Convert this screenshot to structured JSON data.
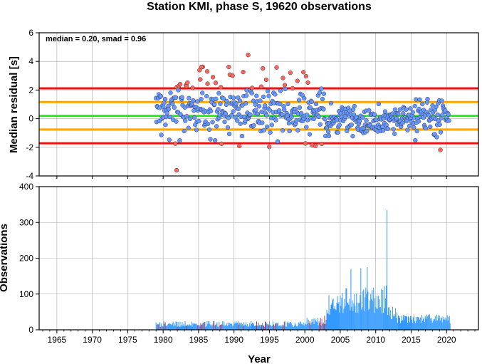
{
  "chart_data": [
    {
      "type": "scatter",
      "title": "Station KMI, phase S, 19620 observations",
      "xlabel": "",
      "ylabel": "Median residual [s]",
      "xlim": [
        1962.5,
        2024.5
      ],
      "ylim": [
        -4,
        6
      ],
      "yticks": [
        "-4",
        "-2",
        "0",
        "2",
        "4",
        "6"
      ],
      "grid": true,
      "annotation": "median = 0.20, smad = 0.96",
      "reference_lines": [
        {
          "y": 0.2,
          "color": "#22ee22"
        },
        {
          "y": 1.16,
          "color": "#ffa500"
        },
        {
          "y": -0.76,
          "color": "#ffa500"
        },
        {
          "y": 2.12,
          "color": "#ee1111"
        },
        {
          "y": -1.72,
          "color": "#ee1111"
        }
      ],
      "point_colors": {
        "within": "#6699ff",
        "outlier": "#ff6655"
      },
      "notable_points": [
        {
          "x": 1981.9,
          "y": -3.6
        },
        {
          "x": 1992.0,
          "y": 4.45
        },
        {
          "x": 1985.4,
          "y": 3.6
        },
        {
          "x": 1999.8,
          "y": 3.25
        }
      ]
    },
    {
      "type": "bar",
      "title": "",
      "xlabel": "Year",
      "ylabel": "Observations",
      "xlim": [
        1962.5,
        2024.5
      ],
      "ylim": [
        0,
        400
      ],
      "xticks": [
        "1965",
        "1970",
        "1975",
        "1980",
        "1985",
        "1990",
        "1995",
        "2000",
        "2005",
        "2010",
        "2015",
        "2020"
      ],
      "yticks": [
        "0",
        "100",
        "200",
        "300",
        "400"
      ],
      "grid": true,
      "bar_colors": {
        "normal": "#3399ff",
        "highlighted": "#dd2222"
      },
      "data_start_year": 1979,
      "data_end_year": 2020.5,
      "notable_bars": [
        {
          "x": 2011.6,
          "value": 335
        },
        {
          "x": 2008.8,
          "value": 175
        },
        {
          "x": 2007.9,
          "value": 172
        },
        {
          "x": 2006.5,
          "value": 170
        }
      ]
    }
  ]
}
